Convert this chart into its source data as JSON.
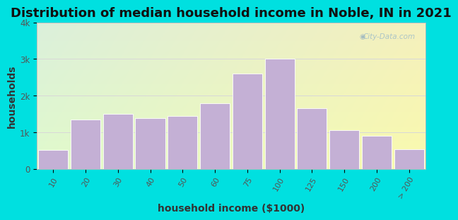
{
  "title": "Distribution of median household income in Noble, IN in 2021",
  "xlabel": "household income ($1000)",
  "ylabel": "households",
  "bar_labels": [
    "10",
    "20",
    "30",
    "40",
    "50",
    "60",
    "75",
    "100",
    "125",
    "150",
    "200",
    "> 200"
  ],
  "bar_values": [
    520,
    1350,
    1500,
    1380,
    1450,
    1800,
    2600,
    3000,
    1650,
    1050,
    900,
    530
  ],
  "bar_color": "#c4b0d5",
  "bar_edge_color": "#ffffff",
  "bg_outer": "#00e0e0",
  "ylim": [
    0,
    4000
  ],
  "yticks": [
    0,
    1000,
    2000,
    3000,
    4000
  ],
  "ytick_labels": [
    "0",
    "1k",
    "2k",
    "3k",
    "4k"
  ],
  "title_fontsize": 13,
  "axis_label_fontsize": 10,
  "watermark": "City-Data.com",
  "grid_color": "#d8d8d8",
  "tick_color": "#555555",
  "label_color": "#333333"
}
